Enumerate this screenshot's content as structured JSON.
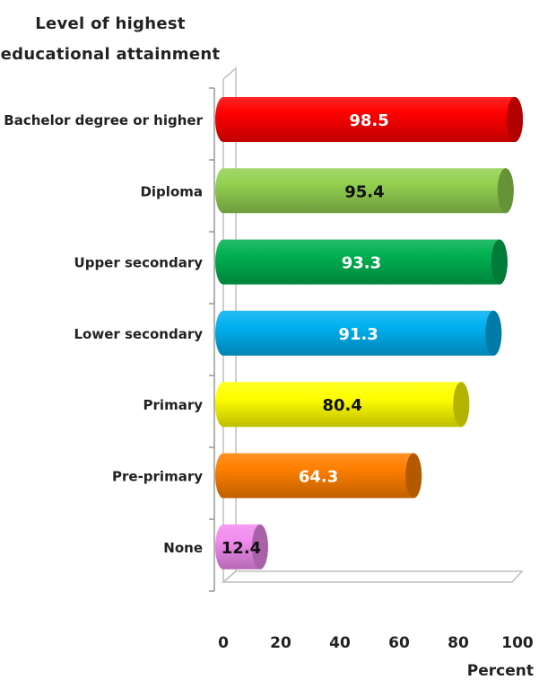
{
  "chart_data": {
    "type": "bar",
    "orientation": "horizontal",
    "y_axis_title_line1": "Level of highest",
    "y_axis_title_line2": "educational attainment",
    "x_axis_title": "Percent",
    "xlim": [
      0,
      100
    ],
    "x_ticks": [
      0,
      20,
      40,
      60,
      80,
      100
    ],
    "grid": false,
    "categories": [
      "Bachelor degree or higher",
      "Diploma",
      "Upper secondary",
      "Lower secondary",
      "Primary",
      "Pre-primary",
      "None"
    ],
    "values": [
      98.5,
      95.4,
      93.3,
      91.3,
      80.4,
      64.3,
      12.4
    ],
    "value_labels": [
      "98.5",
      "95.4",
      "93.3",
      "91.3",
      "80.4",
      "64.3",
      "12.4"
    ],
    "bar_colors": [
      "#ff0000",
      "#92d050",
      "#00b050",
      "#00b0f0",
      "#ffff00",
      "#ff7f00",
      "#f28cf0"
    ],
    "label_colors": [
      "#ffffff",
      "#111111",
      "#ffffff",
      "#ffffff",
      "#111111",
      "#ffffff",
      "#111111"
    ]
  }
}
